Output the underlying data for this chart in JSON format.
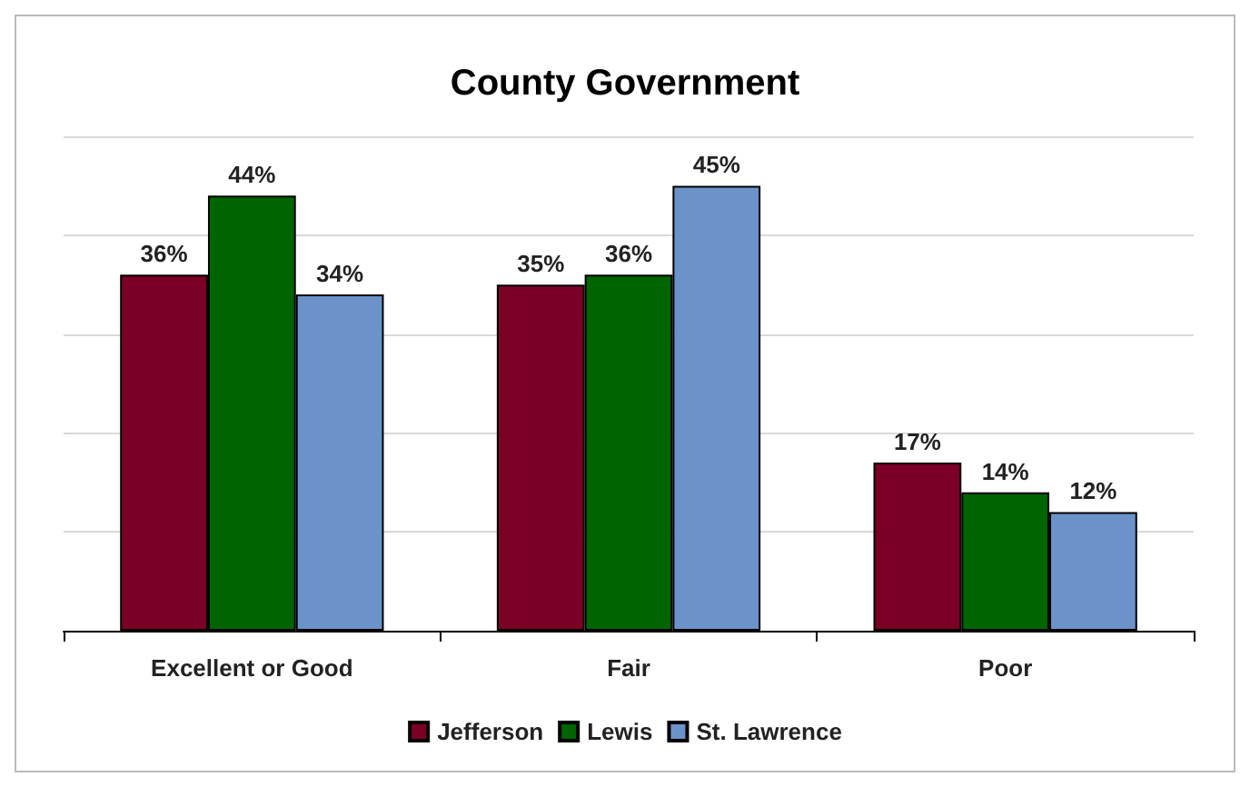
{
  "chart_data": {
    "type": "bar",
    "title": "County Government",
    "categories": [
      "Excellent or Good",
      "Fair",
      "Poor"
    ],
    "series": [
      {
        "name": "Jefferson",
        "color": "#7b0025",
        "values": [
          36,
          35,
          17
        ],
        "value_labels": [
          "36%",
          "35%",
          "17%"
        ]
      },
      {
        "name": "Lewis",
        "color": "#006400",
        "values": [
          44,
          36,
          14
        ],
        "value_labels": [
          "44%",
          "36%",
          "14%"
        ]
      },
      {
        "name": "St. Lawrence",
        "color": "#6b93c9",
        "values": [
          34,
          45,
          12
        ],
        "value_labels": [
          "34%",
          "45%",
          "12%"
        ]
      }
    ],
    "tick_labels": "x",
    "grid": "y",
    "legend": "bottom"
  }
}
